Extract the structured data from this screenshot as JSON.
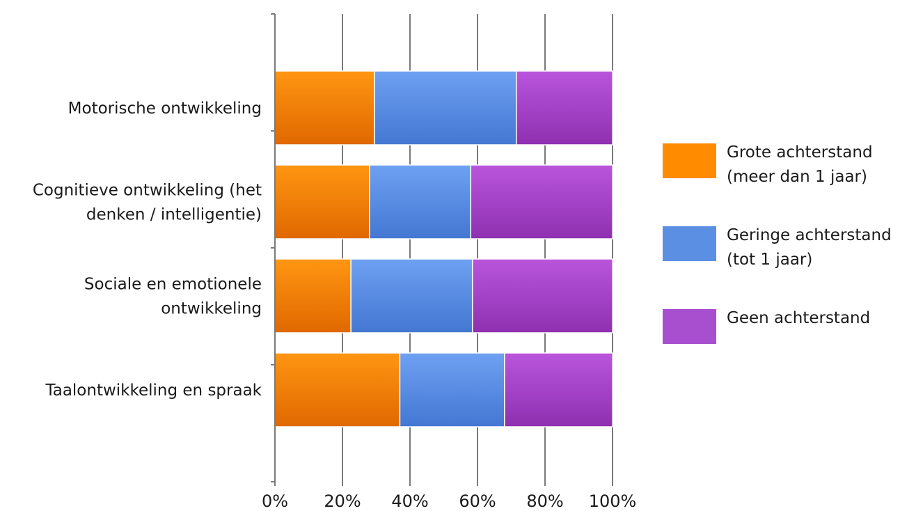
{
  "chart_data": {
    "type": "bar",
    "orientation": "horizontal",
    "stacked": "percent",
    "categories": [
      [
        "Motorische ontwikkeling"
      ],
      [
        "Cognitieve ontwikkeling (het",
        "denken / intelligentie)"
      ],
      [
        "Sociale en emotionele",
        "ontwikkeling"
      ],
      [
        "Taalontwikkeling en spraak"
      ]
    ],
    "series": [
      {
        "name": [
          "Grote achterstand",
          "(meer dan 1 jaar)"
        ],
        "values": [
          29.5,
          28,
          22.5,
          37
        ],
        "color": "#ff8c00"
      },
      {
        "name": [
          "Geringe achterstand",
          "(tot 1 jaar)"
        ],
        "values": [
          42,
          30,
          36,
          31
        ],
        "color": "#5b8fe4"
      },
      {
        "name": [
          "Geen achterstand"
        ],
        "values": [
          28.5,
          42,
          41.5,
          32
        ],
        "color": "#a84fd0"
      }
    ],
    "xlim": [
      0,
      100
    ],
    "xticks": [
      "0%",
      "20%",
      "40%",
      "60%",
      "80%",
      "100%"
    ],
    "grid": true,
    "legend": "right",
    "title": "",
    "xlabel": "",
    "ylabel": ""
  }
}
